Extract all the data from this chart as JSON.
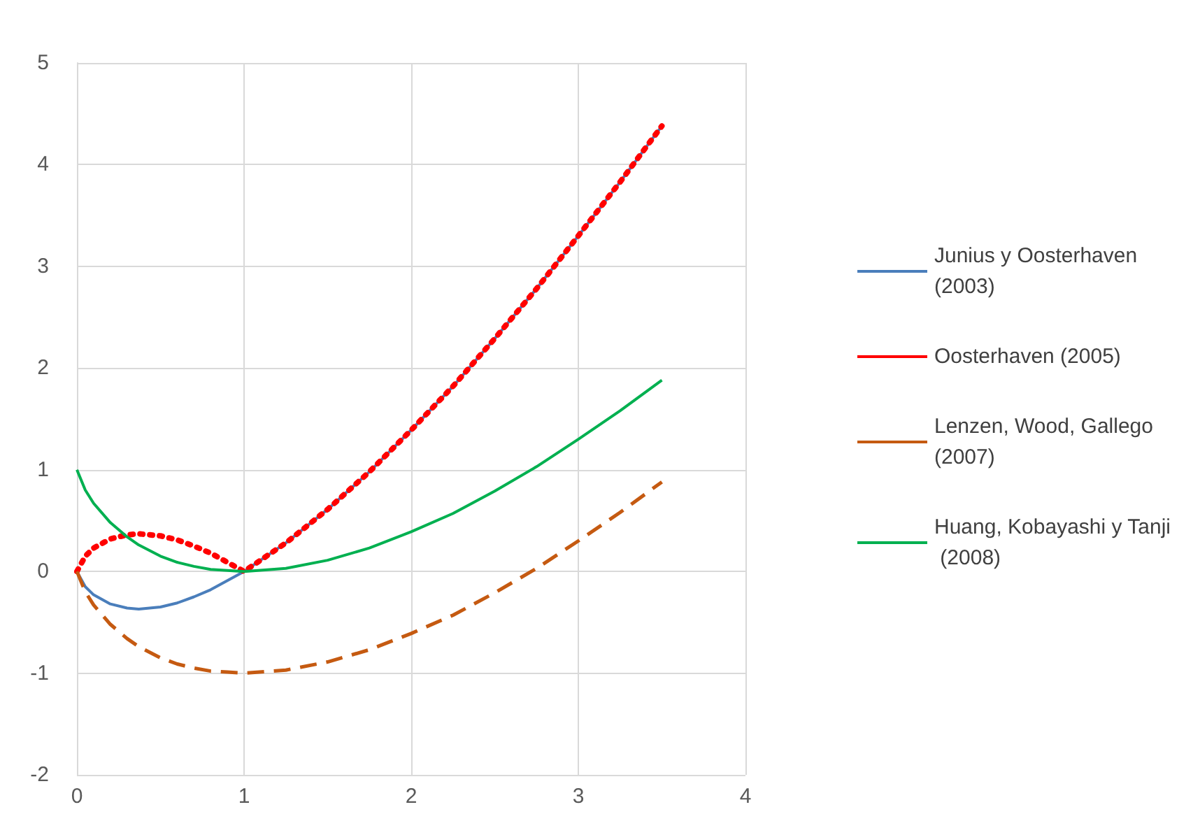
{
  "chart_data": {
    "type": "line",
    "x": [
      0,
      0.05,
      0.1,
      0.2,
      0.3,
      0.37,
      0.5,
      0.6,
      0.7,
      0.8,
      0.9,
      1,
      1.25,
      1.5,
      1.75,
      2,
      2.25,
      2.5,
      2.75,
      3,
      3.25,
      3.5
    ],
    "series": [
      {
        "name": "Junius y Oosterhaven (2003)",
        "color": "#4a7ebb",
        "line_style": "solid",
        "values": [
          0,
          -0.15,
          -0.23,
          -0.32,
          -0.36,
          -0.37,
          -0.35,
          -0.31,
          -0.25,
          -0.18,
          -0.09,
          0,
          0.28,
          0.61,
          0.98,
          1.39,
          1.82,
          2.29,
          2.78,
          3.3,
          3.83,
          4.38
        ]
      },
      {
        "name": "Oosterhaven (2005)",
        "color": "#ff0000",
        "line_style": "dotted",
        "values": [
          0,
          0.15,
          0.23,
          0.32,
          0.36,
          0.37,
          0.35,
          0.31,
          0.25,
          0.18,
          0.09,
          0,
          0.28,
          0.61,
          0.98,
          1.39,
          1.82,
          2.29,
          2.78,
          3.3,
          3.83,
          4.38
        ]
      },
      {
        "name": "Lenzen, Wood, Gallego (2007)",
        "color": "#c55a11",
        "line_style": "dashed",
        "values": [
          0,
          -0.2,
          -0.33,
          -0.52,
          -0.66,
          -0.74,
          -0.85,
          -0.91,
          -0.95,
          -0.98,
          -0.99,
          -1,
          -0.97,
          -0.89,
          -0.77,
          -0.61,
          -0.43,
          -0.21,
          0.03,
          0.3,
          0.58,
          0.88
        ]
      },
      {
        "name": "Huang, Kobayashi y Tanji (2008)",
        "color": "#00b050",
        "line_style": "solid",
        "values": [
          1,
          0.8,
          0.67,
          0.48,
          0.34,
          0.26,
          0.15,
          0.09,
          0.05,
          0.02,
          0.01,
          0,
          0.03,
          0.11,
          0.23,
          0.39,
          0.57,
          0.79,
          1.03,
          1.3,
          1.58,
          1.88
        ]
      }
    ],
    "xlim": [
      0,
      4
    ],
    "xticks": [
      0,
      1,
      2,
      3,
      4
    ],
    "ylim": [
      -2,
      5
    ],
    "yticks": [
      -2,
      -1,
      0,
      1,
      2,
      3,
      4,
      5
    ],
    "grid": true,
    "legend": "right",
    "marker": "none"
  }
}
